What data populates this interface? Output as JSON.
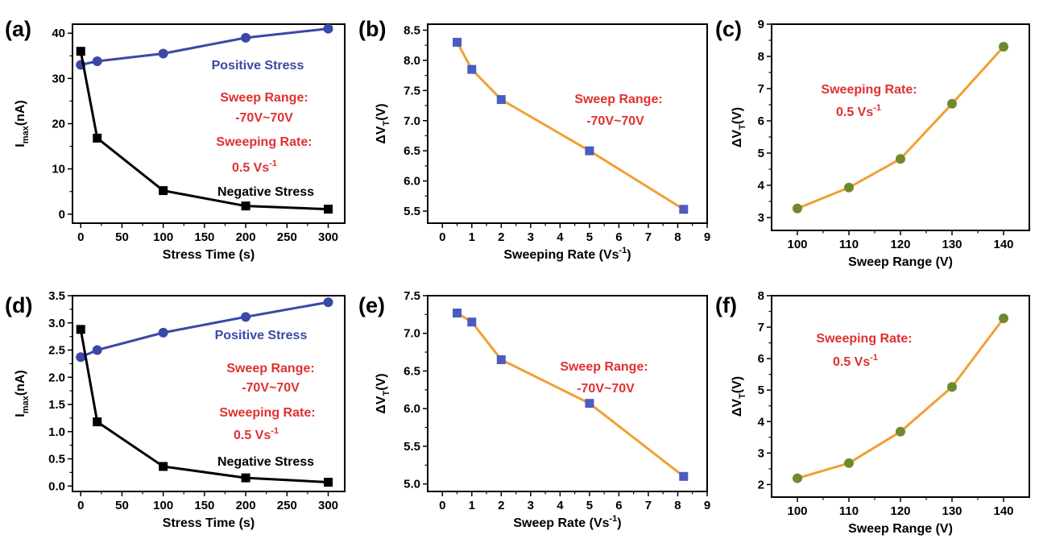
{
  "colors": {
    "positive": "#3b48a6",
    "negative": "#000000",
    "orange_line": "#f0a032",
    "blue_marker": "#4a5cc0",
    "olive_marker": "#6e8a2e",
    "red_text": "#e03030"
  },
  "chart_data": [
    {
      "panel": "(a)",
      "type": "line",
      "xlabel": "Stress Time (s)",
      "ylabel": "I_max(nA)",
      "xlim": [
        -10,
        320
      ],
      "ylim": [
        -2,
        42
      ],
      "xticks": [
        0,
        50,
        100,
        150,
        200,
        250,
        300
      ],
      "yticks": [
        0,
        10,
        20,
        30,
        40
      ],
      "series": [
        {
          "name": "Positive Stress",
          "x": [
            0,
            20,
            100,
            200,
            300
          ],
          "y": [
            33,
            33.8,
            35.5,
            39,
            41
          ]
        },
        {
          "name": "Negative Stress",
          "x": [
            0,
            20,
            100,
            200,
            300
          ],
          "y": [
            36,
            16.8,
            5.2,
            1.8,
            1.1
          ]
        }
      ],
      "annotations": [
        "Positive Stress",
        "Sweep Range:",
        "-70V~70V",
        "Sweeping Rate:",
        "0.5 Vs",
        "-1",
        "Negative Stress"
      ]
    },
    {
      "panel": "(b)",
      "type": "line",
      "xlabel": "Sweeping Rate (Vs",
      "xlabel_sup": "-1",
      "ylabel": "ΔV_T(V)",
      "xlim": [
        -0.5,
        9
      ],
      "ylim": [
        5.3,
        8.6
      ],
      "xticks": [
        0,
        1,
        2,
        3,
        4,
        5,
        6,
        7,
        8,
        9
      ],
      "yticks": [
        "5.5",
        "6.0",
        "6.5",
        "7.0",
        "7.5",
        "8.0",
        "8.5"
      ],
      "series": [
        {
          "x": [
            0.5,
            1,
            2,
            5,
            8.2
          ],
          "y": [
            8.3,
            7.85,
            7.35,
            6.5,
            5.53
          ]
        }
      ],
      "annotations": [
        "Sweep Range:",
        "-70V~70V"
      ]
    },
    {
      "panel": "(c)",
      "type": "line",
      "xlabel": "Sweep Range (V)",
      "ylabel": "ΔV_T(V)",
      "xlim": [
        95,
        145
      ],
      "ylim": [
        2.6,
        9
      ],
      "xticks": [
        100,
        110,
        120,
        130,
        140
      ],
      "yticks": [
        3,
        4,
        5,
        6,
        7,
        8,
        9
      ],
      "series": [
        {
          "x": [
            100,
            110,
            120,
            130,
            140
          ],
          "y": [
            3.28,
            3.93,
            4.82,
            6.53,
            8.3
          ]
        }
      ],
      "annotations": [
        "Sweeping Rate:",
        "0.5 Vs",
        "-1"
      ]
    },
    {
      "panel": "(d)",
      "type": "line",
      "xlabel": "Stress Time (s)",
      "ylabel": "I_max(nA)",
      "xlim": [
        -10,
        320
      ],
      "ylim": [
        -0.1,
        3.5
      ],
      "xticks": [
        0,
        50,
        100,
        150,
        200,
        250,
        300
      ],
      "yticks": [
        "0.0",
        "0.5",
        "1.0",
        "1.5",
        "2.0",
        "2.5",
        "3.0",
        "3.5"
      ],
      "series": [
        {
          "name": "Positive Stress",
          "x": [
            0,
            20,
            100,
            200,
            300
          ],
          "y": [
            2.37,
            2.5,
            2.82,
            3.11,
            3.38
          ]
        },
        {
          "name": "Negative Stress",
          "x": [
            0,
            20,
            100,
            200,
            300
          ],
          "y": [
            2.88,
            1.18,
            0.36,
            0.15,
            0.07
          ]
        }
      ],
      "annotations": [
        "Positive Stress",
        "Sweep Range:",
        "-70V~70V",
        "Sweeping Rate:",
        "0.5 Vs",
        "-1",
        "Negative Stress"
      ]
    },
    {
      "panel": "(e)",
      "type": "line",
      "xlabel": "Sweep Rate (Vs",
      "xlabel_sup": "-1",
      "ylabel": "ΔV_T(V)",
      "xlim": [
        -0.5,
        9
      ],
      "ylim": [
        4.9,
        7.5
      ],
      "xticks": [
        0,
        1,
        2,
        3,
        4,
        5,
        6,
        7,
        8,
        9
      ],
      "yticks": [
        "5.0",
        "5.5",
        "6.0",
        "6.5",
        "7.0",
        "7.5"
      ],
      "series": [
        {
          "x": [
            0.5,
            1,
            2,
            5,
            8.2
          ],
          "y": [
            7.27,
            7.15,
            6.65,
            6.07,
            5.1
          ]
        }
      ],
      "annotations": [
        "Sweep Range:",
        "-70V~70V"
      ]
    },
    {
      "panel": "(f)",
      "type": "line",
      "xlabel": "Sweep Range (V)",
      "ylabel": "ΔV_T(V)",
      "xlim": [
        95,
        145
      ],
      "ylim": [
        1.6,
        8
      ],
      "xticks": [
        100,
        110,
        120,
        130,
        140
      ],
      "yticks": [
        2,
        3,
        4,
        5,
        6,
        7,
        8
      ],
      "series": [
        {
          "x": [
            100,
            110,
            120,
            130,
            140
          ],
          "y": [
            2.2,
            2.68,
            3.68,
            5.1,
            7.28
          ]
        }
      ],
      "annotations": [
        "Sweeping Rate:",
        "0.5 Vs",
        "-1"
      ]
    }
  ]
}
